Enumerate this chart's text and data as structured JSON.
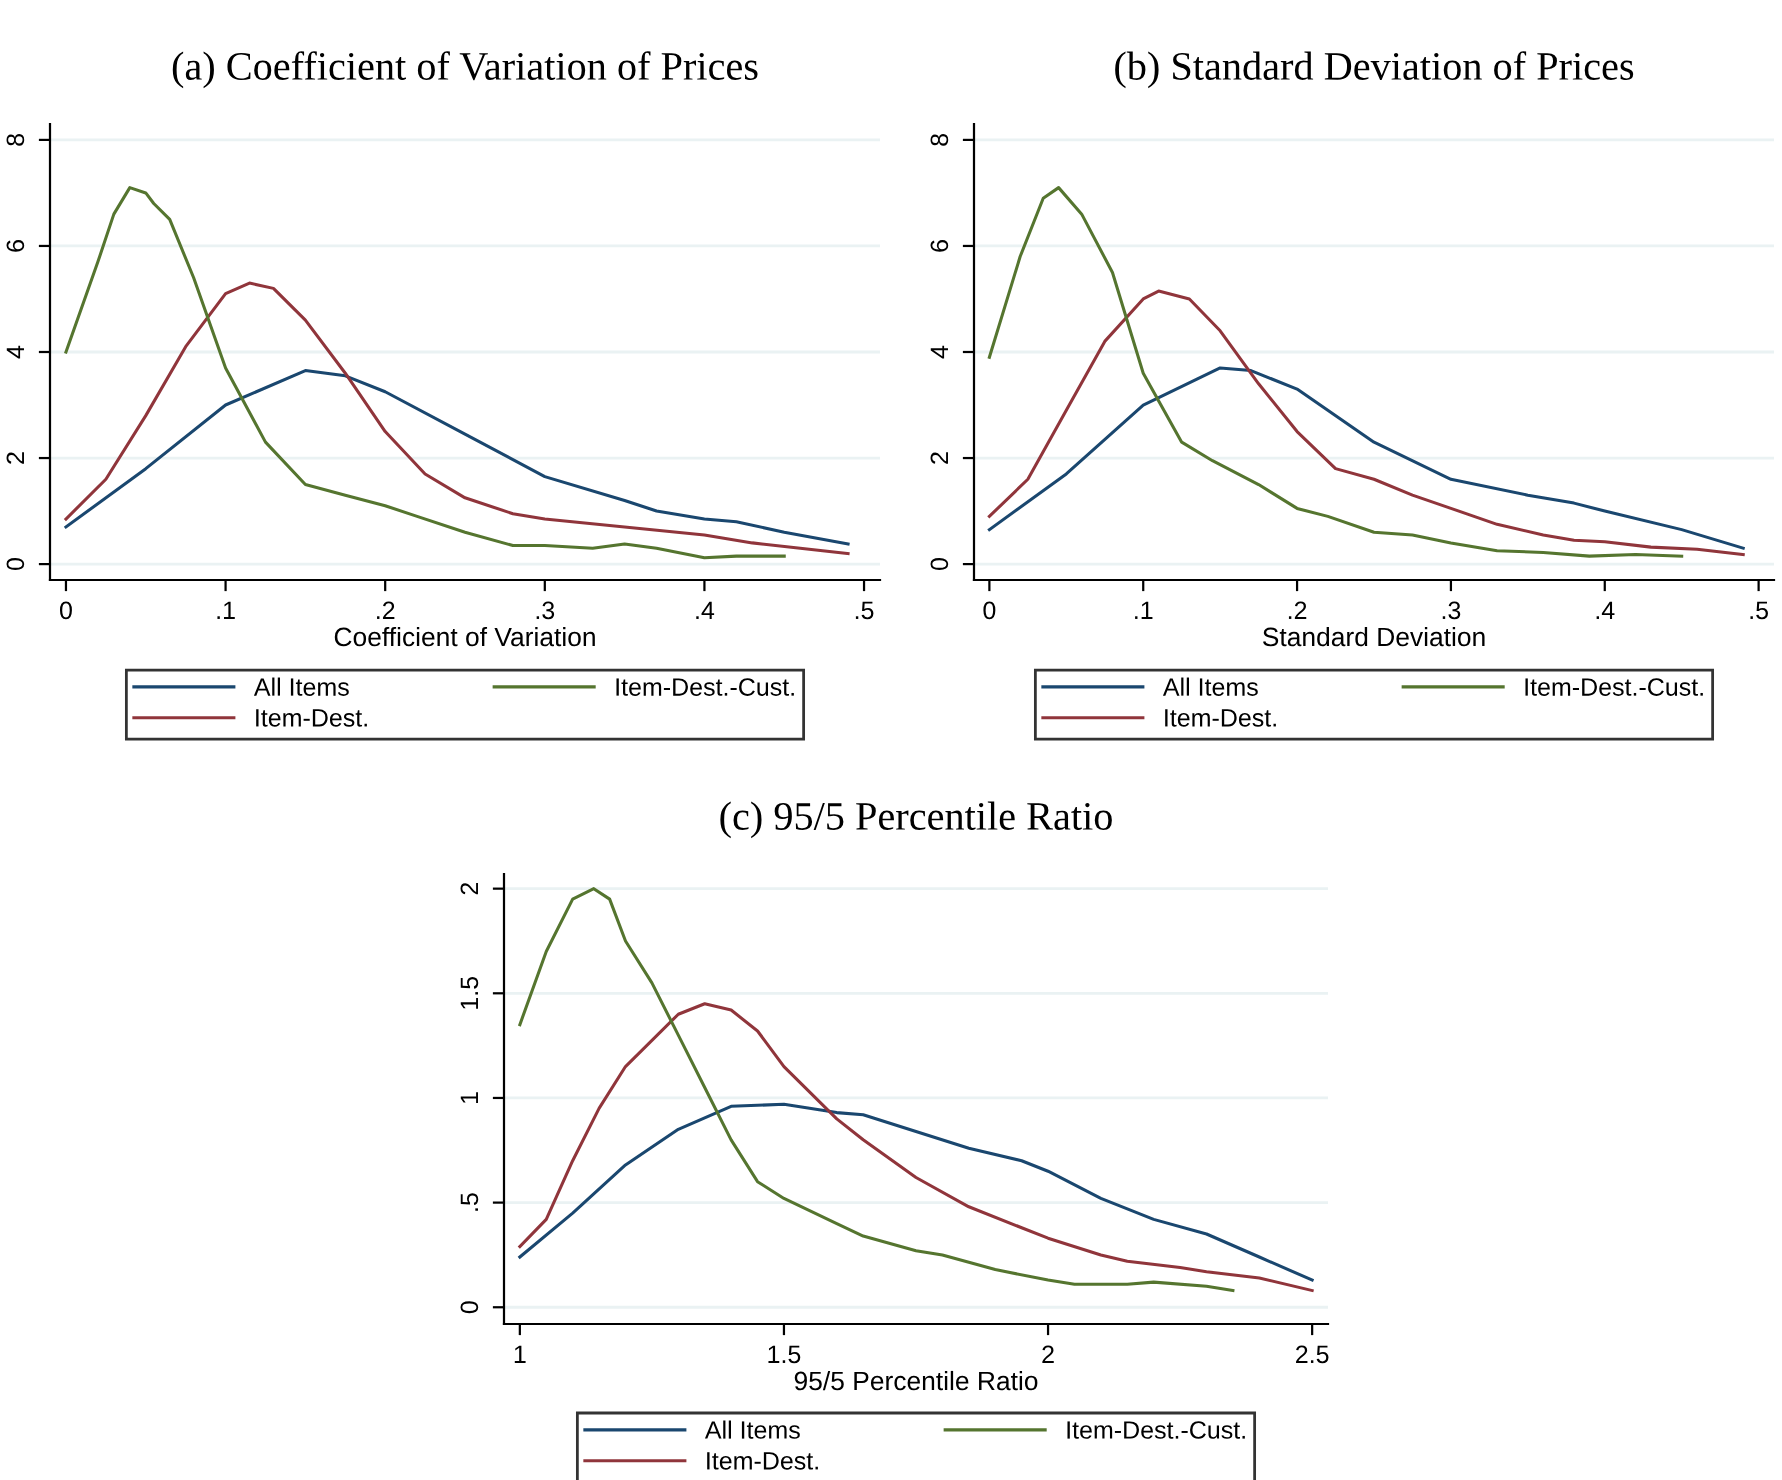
{
  "chart_data": [
    {
      "type": "line",
      "title": "(a) Coefficient of Variation of Prices",
      "xlabel": "Coefficient of Variation",
      "grid": "y",
      "legend": "bottom",
      "xlim": [
        -0.01,
        0.51
      ],
      "ylim": [
        -0.3,
        8.3
      ],
      "xticks": [
        0,
        {
          "value": 0.1,
          "label": ".1"
        },
        {
          "value": 0.2,
          "label": ".2"
        },
        {
          "value": 0.3,
          "label": ".3"
        },
        {
          "value": 0.4,
          "label": ".4"
        },
        {
          "value": 0.5,
          "label": ".5"
        }
      ],
      "yticks": [
        0,
        2,
        4,
        6,
        8
      ],
      "series": [
        {
          "name": "All Items",
          "color": "#1a476f",
          "x": [
            0,
            0.05,
            0.1,
            0.15,
            0.175,
            0.2,
            0.25,
            0.3,
            0.35,
            0.37,
            0.4,
            0.42,
            0.45,
            0.49
          ],
          "values": [
            0.7,
            1.8,
            3.0,
            3.65,
            3.55,
            3.25,
            2.45,
            1.65,
            1.2,
            1.0,
            0.85,
            0.8,
            0.6,
            0.38
          ]
        },
        {
          "name": "Item-Dest.",
          "color": "#90353b",
          "x": [
            0,
            0.025,
            0.05,
            0.075,
            0.1,
            0.115,
            0.13,
            0.15,
            0.175,
            0.2,
            0.225,
            0.25,
            0.28,
            0.3,
            0.35,
            0.4,
            0.43,
            0.46,
            0.49
          ],
          "values": [
            0.85,
            1.6,
            2.8,
            4.1,
            5.1,
            5.3,
            5.2,
            4.6,
            3.6,
            2.5,
            1.7,
            1.25,
            0.95,
            0.85,
            0.7,
            0.55,
            0.4,
            0.3,
            0.2
          ]
        },
        {
          "name": "Item-Dest.-Cust.",
          "color": "#55752f",
          "x": [
            0,
            0.02,
            0.03,
            0.04,
            0.05,
            0.055,
            0.065,
            0.08,
            0.1,
            0.125,
            0.15,
            0.175,
            0.2,
            0.22,
            0.25,
            0.28,
            0.3,
            0.33,
            0.35,
            0.37,
            0.4,
            0.42,
            0.45
          ],
          "values": [
            4.0,
            5.7,
            6.6,
            7.1,
            7.0,
            6.8,
            6.5,
            5.4,
            3.7,
            2.3,
            1.5,
            1.3,
            1.1,
            0.9,
            0.6,
            0.35,
            0.35,
            0.3,
            0.38,
            0.3,
            0.12,
            0.15,
            0.15
          ]
        }
      ]
    },
    {
      "type": "line",
      "title": "(b) Standard Deviation of Prices",
      "xlabel": "Standard Deviation",
      "grid": "y",
      "legend": "bottom",
      "xlim": [
        -0.01,
        0.51
      ],
      "ylim": [
        -0.3,
        8.3
      ],
      "xticks": [
        0,
        {
          "value": 0.1,
          "label": ".1"
        },
        {
          "value": 0.2,
          "label": ".2"
        },
        {
          "value": 0.3,
          "label": ".3"
        },
        {
          "value": 0.4,
          "label": ".4"
        },
        {
          "value": 0.5,
          "label": ".5"
        }
      ],
      "yticks": [
        0,
        2,
        4,
        6,
        8
      ],
      "series": [
        {
          "name": "All Items",
          "color": "#1a476f",
          "x": [
            0,
            0.05,
            0.1,
            0.15,
            0.17,
            0.2,
            0.25,
            0.3,
            0.35,
            0.38,
            0.4,
            0.45,
            0.49
          ],
          "values": [
            0.65,
            1.7,
            3.0,
            3.7,
            3.65,
            3.3,
            2.3,
            1.6,
            1.3,
            1.15,
            1.0,
            0.65,
            0.3
          ]
        },
        {
          "name": "Item-Dest.",
          "color": "#90353b",
          "x": [
            0,
            0.025,
            0.05,
            0.075,
            0.1,
            0.11,
            0.13,
            0.15,
            0.175,
            0.2,
            0.225,
            0.25,
            0.275,
            0.3,
            0.33,
            0.36,
            0.38,
            0.4,
            0.43,
            0.46,
            0.49
          ],
          "values": [
            0.9,
            1.6,
            2.9,
            4.2,
            5.0,
            5.15,
            5.0,
            4.4,
            3.4,
            2.5,
            1.8,
            1.6,
            1.3,
            1.05,
            0.75,
            0.55,
            0.45,
            0.42,
            0.32,
            0.28,
            0.18
          ]
        },
        {
          "name": "Item-Dest.-Cust.",
          "color": "#55752f",
          "x": [
            0,
            0.02,
            0.035,
            0.045,
            0.06,
            0.08,
            0.1,
            0.125,
            0.145,
            0.175,
            0.2,
            0.22,
            0.25,
            0.275,
            0.3,
            0.33,
            0.36,
            0.39,
            0.42,
            0.45
          ],
          "values": [
            3.9,
            5.8,
            6.9,
            7.1,
            6.6,
            5.5,
            3.6,
            2.3,
            1.95,
            1.5,
            1.05,
            0.9,
            0.6,
            0.55,
            0.4,
            0.25,
            0.22,
            0.15,
            0.18,
            0.15
          ]
        }
      ]
    },
    {
      "type": "line",
      "title": "(c) 95/5 Percentile Ratio",
      "xlabel": "95/5 Percentile Ratio",
      "grid": "y",
      "legend": "bottom",
      "xlim": [
        0.97,
        2.53
      ],
      "ylim": [
        -0.08,
        2.07
      ],
      "xticks": [
        1,
        1.5,
        2,
        2.5
      ],
      "yticks": [
        0,
        {
          "value": 0.5,
          "label": ".5"
        },
        1,
        1.5,
        2
      ],
      "series": [
        {
          "name": "All Items",
          "color": "#1a476f",
          "x": [
            1,
            1.1,
            1.2,
            1.3,
            1.4,
            1.5,
            1.6,
            1.65,
            1.75,
            1.85,
            1.95,
            2.0,
            2.1,
            2.2,
            2.3,
            2.4,
            2.5
          ],
          "values": [
            0.24,
            0.45,
            0.68,
            0.85,
            0.96,
            0.97,
            0.93,
            0.92,
            0.84,
            0.76,
            0.7,
            0.65,
            0.52,
            0.42,
            0.35,
            0.24,
            0.13
          ]
        },
        {
          "name": "Item-Dest.",
          "color": "#90353b",
          "x": [
            1,
            1.05,
            1.1,
            1.15,
            1.2,
            1.3,
            1.35,
            1.4,
            1.45,
            1.5,
            1.6,
            1.65,
            1.75,
            1.85,
            1.95,
            2.0,
            2.1,
            2.15,
            2.25,
            2.3,
            2.4,
            2.5
          ],
          "values": [
            0.29,
            0.42,
            0.7,
            0.95,
            1.15,
            1.4,
            1.45,
            1.42,
            1.32,
            1.15,
            0.9,
            0.8,
            0.62,
            0.48,
            0.38,
            0.33,
            0.25,
            0.22,
            0.19,
            0.17,
            0.14,
            0.08
          ]
        },
        {
          "name": "Item-Dest.-Cust.",
          "color": "#55752f",
          "x": [
            1,
            1.05,
            1.1,
            1.14,
            1.17,
            1.2,
            1.25,
            1.3,
            1.35,
            1.4,
            1.45,
            1.5,
            1.6,
            1.65,
            1.75,
            1.8,
            1.9,
            2.0,
            2.05,
            2.15,
            2.2,
            2.3,
            2.35
          ],
          "values": [
            1.35,
            1.7,
            1.95,
            2.0,
            1.95,
            1.75,
            1.55,
            1.3,
            1.05,
            0.8,
            0.6,
            0.52,
            0.4,
            0.34,
            0.27,
            0.25,
            0.18,
            0.13,
            0.11,
            0.11,
            0.12,
            0.1,
            0.08
          ]
        }
      ]
    }
  ]
}
